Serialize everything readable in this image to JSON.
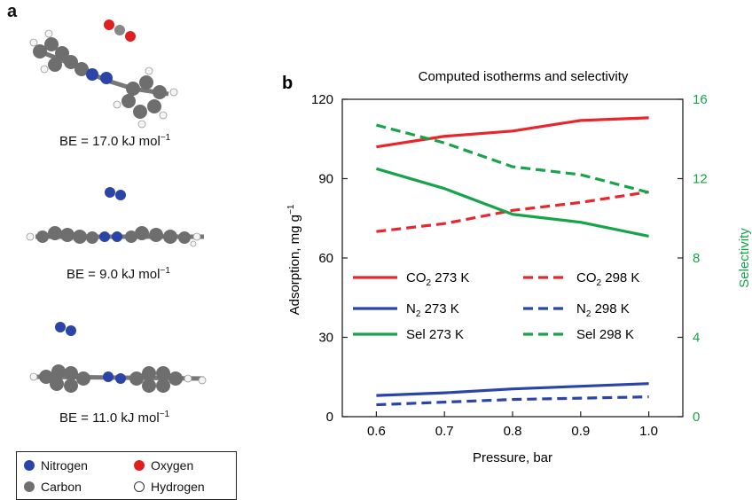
{
  "panel_a": {
    "label": "a",
    "structures": [
      {
        "be_prefix": "BE = ",
        "be_value": "17.0",
        "be_unit": " kJ mol",
        "be_sup": "−1"
      },
      {
        "be_prefix": "BE = ",
        "be_value": "9.0",
        "be_unit": " kJ mol",
        "be_sup": "−1"
      },
      {
        "be_prefix": "BE = ",
        "be_value": "11.0",
        "be_unit": " kJ mol",
        "be_sup": "−1"
      }
    ],
    "atom_legend": [
      {
        "name": "Nitrogen",
        "color": "#2b44a8"
      },
      {
        "name": "Oxygen",
        "color": "#e02020"
      },
      {
        "name": "Carbon",
        "color": "#707070"
      },
      {
        "name": "Hydrogen",
        "color": "#ffffff"
      }
    ]
  },
  "panel_b": {
    "label": "b"
  },
  "chart_data": {
    "type": "line",
    "title": "Computed isotherms and selectivity",
    "xlabel": "Pressure, bar",
    "ylabel": "Adsorption, mg g",
    "ylabel_sup": "−1",
    "y2label": "Selectivity",
    "x": [
      0.6,
      0.7,
      0.8,
      0.9,
      1.0
    ],
    "x_ticks": [
      "0.6",
      "0.7",
      "0.8",
      "0.9",
      "1.0"
    ],
    "xlim": [
      0.55,
      1.05
    ],
    "ylim": [
      0,
      120
    ],
    "y_ticks": [
      "0",
      "30",
      "60",
      "90",
      "120"
    ],
    "y2lim": [
      0,
      16
    ],
    "y2_ticks": [
      "0",
      "4",
      "8",
      "12",
      "16"
    ],
    "grid": false,
    "series": [
      {
        "name_main": "CO",
        "name_sub": "2",
        "name_rest": " 273 K",
        "axis": "left",
        "color": "#e8262b",
        "dash": false,
        "values": [
          102,
          106,
          108,
          112,
          113
        ]
      },
      {
        "name_main": "CO",
        "name_sub": "2",
        "name_rest": " 298 K",
        "axis": "left",
        "color": "#e8262b",
        "dash": true,
        "values": [
          70,
          73,
          78,
          81,
          85
        ]
      },
      {
        "name_main": "N",
        "name_sub": "2",
        "name_rest": " 273 K",
        "axis": "left",
        "color": "#2b44a8",
        "dash": false,
        "values": [
          8,
          9,
          10.5,
          11.5,
          12.5
        ]
      },
      {
        "name_main": "N",
        "name_sub": "2",
        "name_rest": " 298 K",
        "axis": "left",
        "color": "#2b44a8",
        "dash": true,
        "values": [
          4.5,
          5.5,
          6.5,
          7,
          7.5
        ]
      },
      {
        "name_main": "Sel 273 K",
        "name_sub": "",
        "name_rest": "",
        "axis": "right",
        "color": "#17a34a",
        "dash": false,
        "values": [
          12.5,
          11.5,
          10.2,
          9.8,
          9.1
        ]
      },
      {
        "name_main": "Sel 298 K",
        "name_sub": "",
        "name_rest": "",
        "axis": "right",
        "color": "#17a34a",
        "dash": true,
        "values": [
          14.7,
          13.8,
          12.6,
          12.2,
          11.3
        ]
      }
    ],
    "legend_placement": "center-left"
  }
}
